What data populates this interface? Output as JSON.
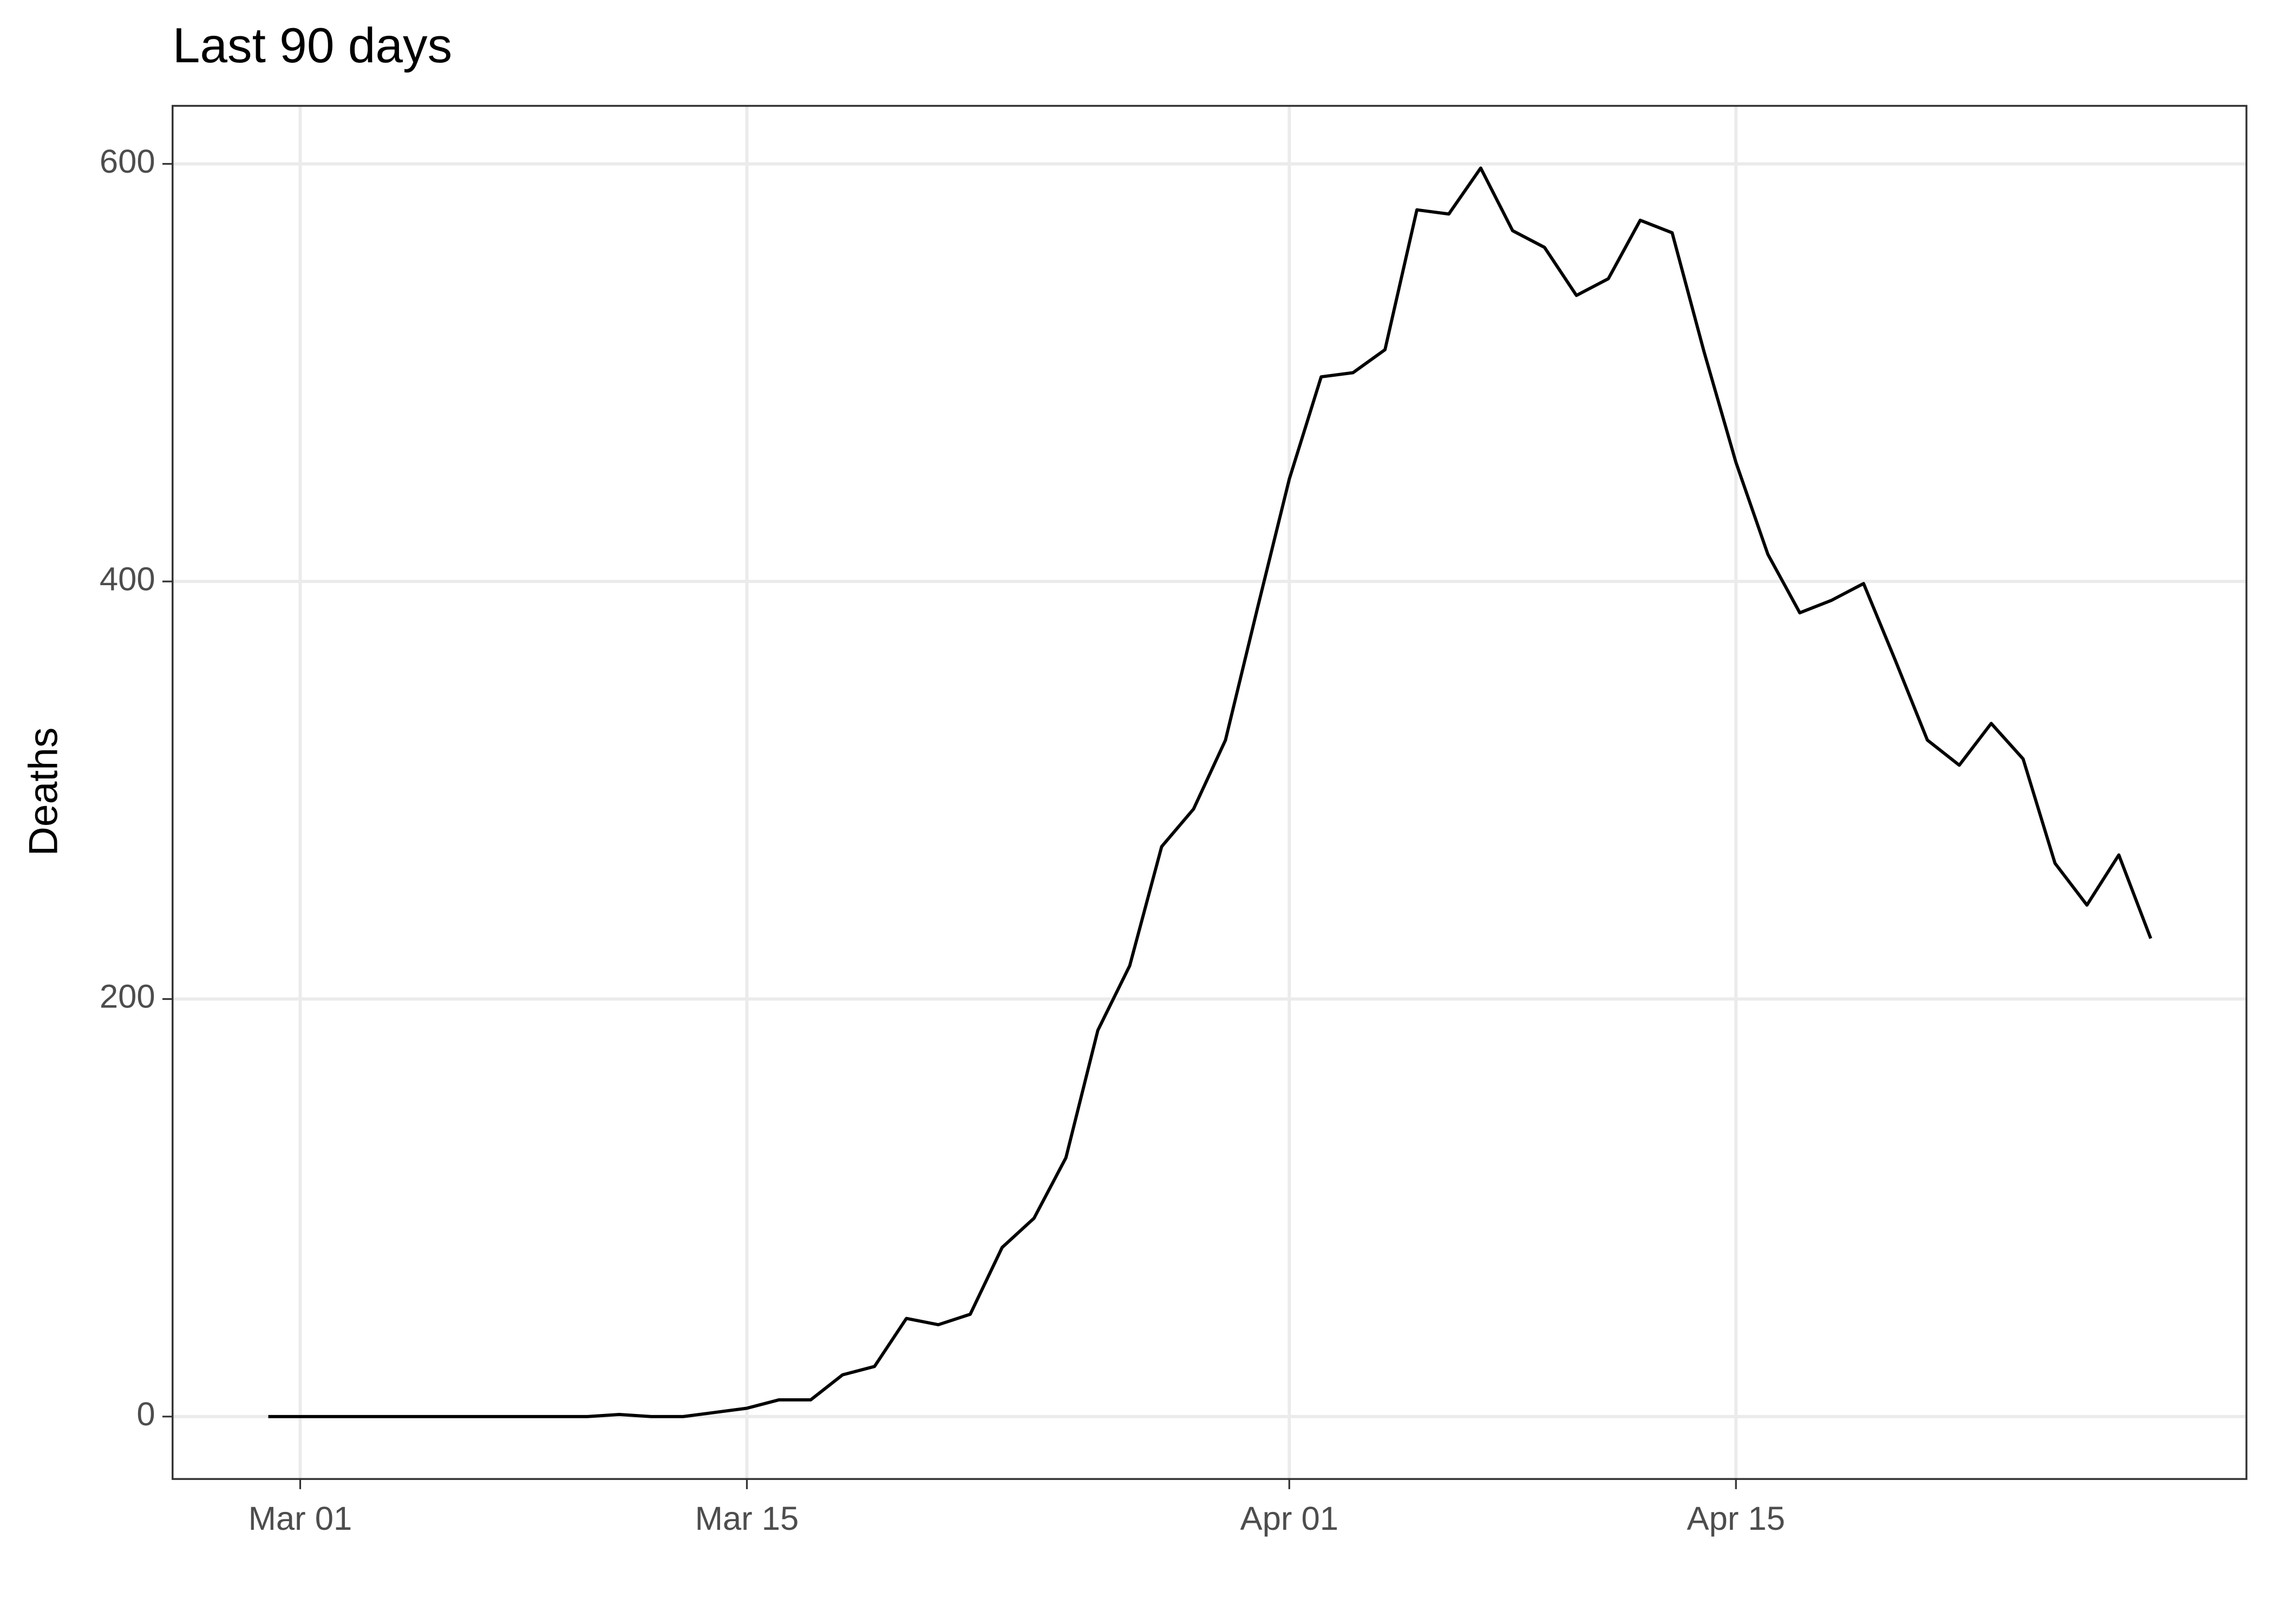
{
  "chart_data": {
    "type": "line",
    "title": "Last 90 days",
    "y_label": "Deaths",
    "x": [
      "Feb 29",
      "Mar 01",
      "Mar 02",
      "Mar 03",
      "Mar 04",
      "Mar 05",
      "Mar 06",
      "Mar 07",
      "Mar 08",
      "Mar 09",
      "Mar 10",
      "Mar 11",
      "Mar 12",
      "Mar 13",
      "Mar 14",
      "Mar 15",
      "Mar 16",
      "Mar 17",
      "Mar 18",
      "Mar 19",
      "Mar 20",
      "Mar 21",
      "Mar 22",
      "Mar 23",
      "Mar 24",
      "Mar 25",
      "Mar 26",
      "Mar 27",
      "Mar 28",
      "Mar 29",
      "Mar 30",
      "Mar 31",
      "Apr 01",
      "Apr 02",
      "Apr 03",
      "Apr 04",
      "Apr 05",
      "Apr 06",
      "Apr 07",
      "Apr 08",
      "Apr 09",
      "Apr 10",
      "Apr 11",
      "Apr 12",
      "Apr 13",
      "Apr 14",
      "Apr 15",
      "Apr 16",
      "Apr 17",
      "Apr 18",
      "Apr 19",
      "Apr 20",
      "Apr 21",
      "Apr 22",
      "Apr 23",
      "Apr 24",
      "Apr 25",
      "Apr 26",
      "Apr 27",
      "Apr 28"
    ],
    "series": [
      {
        "name": "Deaths",
        "color": "#000000",
        "values": [
          0,
          0,
          0,
          0,
          0,
          0,
          0,
          0,
          0,
          0,
          0,
          1,
          0,
          0,
          2,
          4,
          8,
          8,
          20,
          24,
          47,
          44,
          49,
          81,
          95,
          124,
          185,
          216,
          273,
          291,
          324,
          387,
          449,
          498,
          500,
          511,
          578,
          576,
          598,
          568,
          560,
          537,
          545,
          573,
          567,
          510,
          457,
          413,
          385,
          391,
          399,
          362,
          324,
          312,
          332,
          315,
          265,
          245,
          269,
          229
        ]
      }
    ],
    "xlim": [
      "Feb 26",
      "May 01"
    ],
    "xticks": [
      "Mar 01",
      "Mar 15",
      "Apr 01",
      "Apr 15"
    ],
    "ylim": [
      -29.9,
      627.8
    ],
    "yticks": [
      0,
      200,
      400,
      600
    ],
    "grid": true
  }
}
